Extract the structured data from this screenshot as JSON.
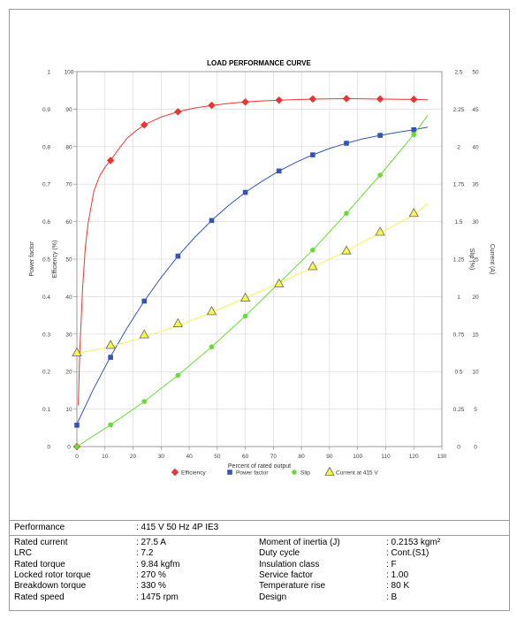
{
  "chart_data": {
    "type": "line",
    "title": "LOAD PERFORMANCE CURVE",
    "xlabel": "Percent of rated output",
    "x_ticks": [
      "0",
      "10",
      "20",
      "30",
      "40",
      "50",
      "60",
      "70",
      "80",
      "90",
      "100",
      "110",
      "120",
      "130"
    ],
    "xlim": [
      0,
      130
    ],
    "left_axes": {
      "power_factor": {
        "label": "Power factor",
        "ticks": [
          "0",
          "0.1",
          "0.2",
          "0.3",
          "0.4",
          "0.5",
          "0.6",
          "0.7",
          "0.8",
          "0.9",
          "1"
        ],
        "lim": [
          0,
          1
        ]
      },
      "efficiency": {
        "label": "Efficiency (%)",
        "ticks": [
          "0",
          "10",
          "20",
          "30",
          "40",
          "50",
          "60",
          "70",
          "80",
          "90",
          "100"
        ],
        "lim": [
          0,
          100
        ]
      }
    },
    "right_axes": {
      "slip": {
        "label": "Slip (%)",
        "ticks": [
          "0",
          "0.25",
          "0.5",
          "0.75",
          "1",
          "1.25",
          "1.5",
          "1.75",
          "2",
          "2.25",
          "2.5"
        ],
        "lim": [
          0,
          2.5
        ]
      },
      "current": {
        "label": "Current (A)",
        "ticks": [
          "0",
          "5",
          "10",
          "15",
          "20",
          "25",
          "30",
          "35",
          "40",
          "45",
          "50"
        ],
        "lim": [
          0,
          50
        ]
      }
    },
    "grid": true,
    "legend_position": "bottom",
    "series": [
      {
        "name": "Efficiency",
        "axis": "efficiency",
        "color": "#ee3333",
        "marker": "diamond",
        "x": [
          0,
          12,
          24,
          36,
          48,
          60,
          72,
          84,
          96,
          108,
          120
        ],
        "y": [
          0,
          76.3,
          85.8,
          89.3,
          91.0,
          91.9,
          92.4,
          92.7,
          92.8,
          92.7,
          92.6
        ],
        "curve": [
          [
            0.5,
            11
          ],
          [
            1,
            25
          ],
          [
            2,
            42
          ],
          [
            3,
            53
          ],
          [
            4,
            59.5
          ],
          [
            6,
            68
          ],
          [
            8,
            72
          ],
          [
            10,
            74.5
          ],
          [
            12,
            76.3
          ],
          [
            15,
            79.5
          ],
          [
            18,
            82.3
          ],
          [
            21,
            84.2
          ],
          [
            24,
            85.8
          ],
          [
            30,
            87.9
          ],
          [
            36,
            89.3
          ],
          [
            42,
            90.3
          ],
          [
            48,
            91.0
          ],
          [
            54,
            91.5
          ],
          [
            60,
            91.9
          ],
          [
            66,
            92.2
          ],
          [
            72,
            92.4
          ],
          [
            84,
            92.7
          ],
          [
            96,
            92.8
          ],
          [
            108,
            92.7
          ],
          [
            120,
            92.6
          ],
          [
            125,
            92.5
          ]
        ]
      },
      {
        "name": "Power factor",
        "axis": "power_factor",
        "color": "#3355bb",
        "marker": "square",
        "x": [
          0,
          12,
          24,
          36,
          48,
          60,
          72,
          84,
          96,
          108,
          120
        ],
        "y": [
          0.057,
          0.238,
          0.388,
          0.508,
          0.603,
          0.678,
          0.735,
          0.778,
          0.809,
          0.83,
          0.845
        ],
        "curve": [
          [
            0,
            0.06
          ],
          [
            6,
            0.155
          ],
          [
            12,
            0.24
          ],
          [
            18,
            0.318
          ],
          [
            24,
            0.388
          ],
          [
            30,
            0.451
          ],
          [
            36,
            0.508
          ],
          [
            42,
            0.558
          ],
          [
            48,
            0.603
          ],
          [
            54,
            0.643
          ],
          [
            60,
            0.678
          ],
          [
            66,
            0.708
          ],
          [
            72,
            0.735
          ],
          [
            78,
            0.758
          ],
          [
            84,
            0.778
          ],
          [
            90,
            0.795
          ],
          [
            96,
            0.809
          ],
          [
            102,
            0.821
          ],
          [
            108,
            0.83
          ],
          [
            114,
            0.838
          ],
          [
            120,
            0.845
          ],
          [
            125,
            0.852
          ]
        ]
      },
      {
        "name": "Slip",
        "axis": "slip",
        "color": "#66dd33",
        "marker": "circle",
        "x": [
          0,
          12,
          24,
          36,
          48,
          60,
          72,
          84,
          96,
          108,
          120
        ],
        "y": [
          0.0,
          0.145,
          0.3,
          0.475,
          0.665,
          0.87,
          1.09,
          1.31,
          1.555,
          1.81,
          2.08
        ],
        "curve": [
          [
            0,
            0.0
          ],
          [
            12,
            0.145
          ],
          [
            24,
            0.3
          ],
          [
            36,
            0.475
          ],
          [
            48,
            0.665
          ],
          [
            60,
            0.87
          ],
          [
            72,
            1.09
          ],
          [
            84,
            1.31
          ],
          [
            96,
            1.555
          ],
          [
            108,
            1.81
          ],
          [
            120,
            2.08
          ],
          [
            125,
            2.21
          ]
        ]
      },
      {
        "name": "Current at 415 V",
        "axis": "current",
        "color": "#f5f54a",
        "marker": "triangle",
        "x": [
          0,
          12,
          24,
          36,
          48,
          60,
          72,
          84,
          96,
          108,
          120
        ],
        "y": [
          12.5,
          13.5,
          14.9,
          16.4,
          18.0,
          19.8,
          21.7,
          24.0,
          26.1,
          28.6,
          31.1
        ],
        "curve": [
          [
            0,
            12.4
          ],
          [
            12,
            13.3
          ],
          [
            24,
            14.6
          ],
          [
            36,
            16.1
          ],
          [
            48,
            17.9
          ],
          [
            60,
            19.8
          ],
          [
            72,
            21.8
          ],
          [
            84,
            23.9
          ],
          [
            96,
            26.1
          ],
          [
            108,
            28.5
          ],
          [
            120,
            30.9
          ],
          [
            125,
            32.4
          ]
        ]
      }
    ]
  },
  "specs": {
    "performance_label": "Performance",
    "performance_value": ": 415 V 50 Hz 4P IE3",
    "left": [
      {
        "label": "Rated current",
        "value": ": 27.5 A"
      },
      {
        "label": "LRC",
        "value": ": 7.2"
      },
      {
        "label": "Rated torque",
        "value": ": 9.84 kgfm"
      },
      {
        "label": "Locked rotor torque",
        "value": ": 270 %"
      },
      {
        "label": "Breakdown torque",
        "value": ": 330 %"
      },
      {
        "label": "Rated speed",
        "value": ": 1475 rpm"
      }
    ],
    "right": [
      {
        "label": "Moment of inertia (J)",
        "value": ": 0.2153 kgm²"
      },
      {
        "label": "Duty cycle",
        "value": ": Cont.(S1)"
      },
      {
        "label": "Insulation class",
        "value": ": F"
      },
      {
        "label": "Service factor",
        "value": ": 1.00"
      },
      {
        "label": "Temperature rise",
        "value": ": 80 K"
      },
      {
        "label": "Design",
        "value": ": B"
      }
    ]
  }
}
